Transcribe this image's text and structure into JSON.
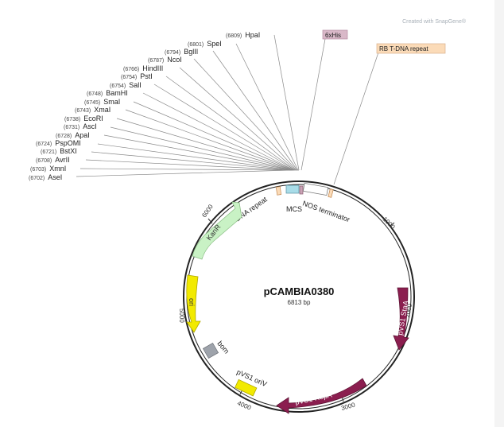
{
  "credit": "Created with SnapGene®",
  "plasmid": {
    "name": "pCAMBIA0380",
    "length": "6813 bp"
  },
  "sites": [
    {
      "pos": "(6809)",
      "name": "HpaI"
    },
    {
      "pos": "(6801)",
      "name": "SpeI"
    },
    {
      "pos": "(6794)",
      "name": "BglII"
    },
    {
      "pos": "(6787)",
      "name": "NcoI"
    },
    {
      "pos": "(6766)",
      "name": "HindIII"
    },
    {
      "pos": "(6754)",
      "name": "PstI"
    },
    {
      "pos": "(6754)",
      "name": "SalI"
    },
    {
      "pos": "(6748)",
      "name": "BamHI"
    },
    {
      "pos": "(6745)",
      "name": "SmaI"
    },
    {
      "pos": "(6743)",
      "name": "XmaI"
    },
    {
      "pos": "(6738)",
      "name": "EcoRI"
    },
    {
      "pos": "(6731)",
      "name": "AscI"
    },
    {
      "pos": "(6728)",
      "name": "ApaI"
    },
    {
      "pos": "(6724)",
      "name": "PspOMI"
    },
    {
      "pos": "(6721)",
      "name": "BstXI"
    },
    {
      "pos": "(6708)",
      "name": "AvrII"
    },
    {
      "pos": "(6703)",
      "name": "XmnI"
    },
    {
      "pos": "(6702)",
      "name": "AseI"
    }
  ],
  "features": {
    "his": "6xHis",
    "rb": "RB T-DNA repeat",
    "lb": "LB T-DNA repeat",
    "mcs": "MCS",
    "nos": "NOS terminator",
    "kanr": "KanR",
    "ori": "ori",
    "bom": "bom",
    "pvs1_oriv": "pVS1 oriV",
    "pvs1_repa": "pVS1 RepA",
    "pvs1_staa": "pVS1 StaA"
  },
  "ticks": [
    "1000",
    "2000",
    "3000",
    "4000",
    "5000",
    "6000"
  ],
  "colors": {
    "kanr": "#c9f2c5",
    "ori": "#f2ea00",
    "bom": "#9ea3ab",
    "oriv": "#f2ea00",
    "repa": "#8b1e4f",
    "staa": "#8b1e4f",
    "mcs": "#a8dce8",
    "his": "#c9a3b6",
    "rb": "#fbdbb8"
  }
}
